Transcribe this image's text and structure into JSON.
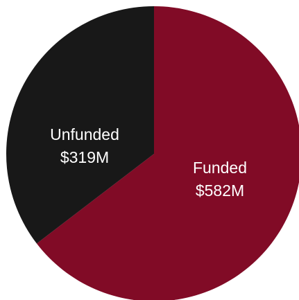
{
  "chart_data": {
    "type": "pie",
    "title": "",
    "legend": "none",
    "slices": [
      {
        "name": "Funded",
        "value": 582,
        "value_label": "$582M",
        "color": "#810b26"
      },
      {
        "name": "Unfunded",
        "value": 319,
        "value_label": "$319M",
        "color": "#181818"
      }
    ]
  }
}
